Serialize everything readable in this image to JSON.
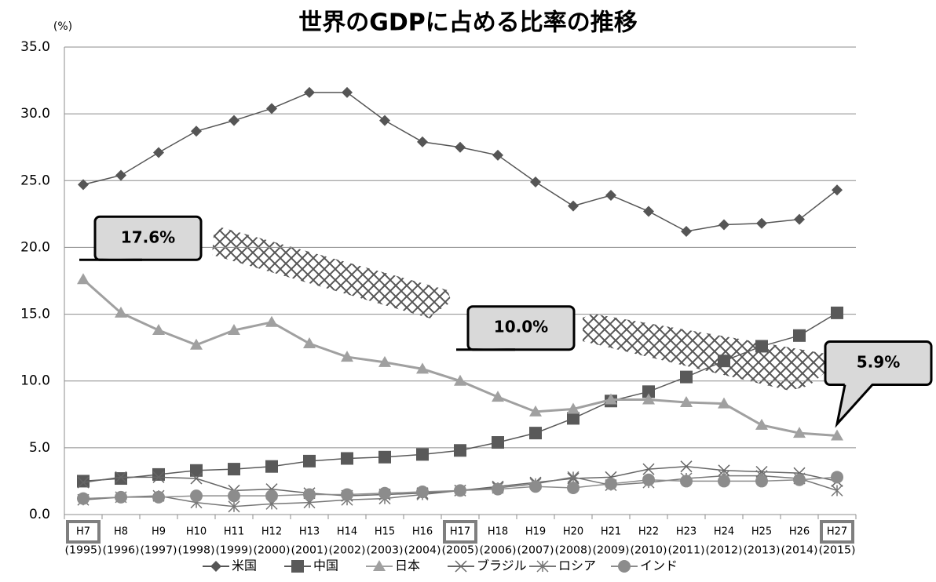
{
  "chart_data": {
    "type": "line",
    "title": "世界のGDPに占める比率の推移",
    "y_label": "(%)",
    "categories": [
      "H7",
      "H8",
      "H9",
      "H10",
      "H11",
      "H12",
      "H13",
      "H14",
      "H15",
      "H16",
      "H17",
      "H18",
      "H19",
      "H20",
      "H21",
      "H22",
      "H23",
      "H24",
      "H25",
      "H26",
      "H27"
    ],
    "category_years": [
      "(1995)",
      "(1996)",
      "(1997)",
      "(1998)",
      "(1999)",
      "(2000)",
      "(2001)",
      "(2002)",
      "(2003)",
      "(2004)",
      "(2005)",
      "(2006)",
      "(2007)",
      "(2008)",
      "(2009)",
      "(2010)",
      "(2011)",
      "(2012)",
      "(2013)",
      "(2014)",
      "(2015)"
    ],
    "highlighted_categories": [
      "H7",
      "H17",
      "H27"
    ],
    "ylim": [
      0,
      35
    ],
    "yticks": [
      {
        "value": 0,
        "label": "0.0"
      },
      {
        "value": 5,
        "label": "5.0"
      },
      {
        "value": 10,
        "label": "10.0"
      },
      {
        "value": 15,
        "label": "15.0"
      },
      {
        "value": 20,
        "label": "20.0"
      },
      {
        "value": 25,
        "label": "25.0"
      },
      {
        "value": 30,
        "label": "30.0"
      },
      {
        "value": 35,
        "label": "35.0"
      }
    ],
    "grid": true,
    "series": [
      {
        "name": "米国",
        "color": "#555555",
        "marker": "diamond",
        "values": [
          24.7,
          25.4,
          27.1,
          28.7,
          29.5,
          30.4,
          31.6,
          31.6,
          29.5,
          27.9,
          27.5,
          26.9,
          24.9,
          23.1,
          23.9,
          22.7,
          21.2,
          21.7,
          21.8,
          22.1,
          24.3
        ]
      },
      {
        "name": "中国",
        "color": "#595959",
        "marker": "square",
        "values": [
          2.5,
          2.7,
          3.0,
          3.3,
          3.4,
          3.6,
          4.0,
          4.2,
          4.3,
          4.5,
          4.8,
          5.4,
          6.1,
          7.2,
          8.5,
          9.2,
          10.3,
          11.5,
          12.6,
          13.4,
          15.1
        ]
      },
      {
        "name": "日本",
        "color": "#a0a0a0",
        "marker": "triangle",
        "values": [
          17.6,
          15.1,
          13.8,
          12.7,
          13.8,
          14.4,
          12.8,
          11.8,
          11.4,
          10.9,
          10.0,
          8.8,
          7.7,
          7.9,
          8.6,
          8.6,
          8.4,
          8.3,
          6.7,
          6.1,
          5.9
        ]
      },
      {
        "name": "ブラジル",
        "color": "#666666",
        "marker": "x",
        "values": [
          2.4,
          2.8,
          2.8,
          2.7,
          1.8,
          1.9,
          1.6,
          1.4,
          1.5,
          1.6,
          1.8,
          2.1,
          2.4,
          2.7,
          2.8,
          3.4,
          3.6,
          3.3,
          3.2,
          3.1,
          2.5
        ]
      },
      {
        "name": "ロシア",
        "color": "#777777",
        "marker": "asterisk",
        "values": [
          1.1,
          1.3,
          1.4,
          0.9,
          0.6,
          0.8,
          0.9,
          1.1,
          1.2,
          1.5,
          1.8,
          2.0,
          2.3,
          2.8,
          2.2,
          2.4,
          2.7,
          2.9,
          2.9,
          2.7,
          1.8
        ]
      },
      {
        "name": "インド",
        "color": "#8c8c8c",
        "marker": "circle",
        "values": [
          1.2,
          1.3,
          1.3,
          1.4,
          1.4,
          1.4,
          1.5,
          1.5,
          1.6,
          1.7,
          1.8,
          1.9,
          2.1,
          2.0,
          2.3,
          2.6,
          2.5,
          2.5,
          2.5,
          2.6,
          2.8
        ]
      }
    ],
    "annotations": [
      {
        "text": "17.6%",
        "x": "H7"
      },
      {
        "text": "10.0%",
        "x": "H17"
      },
      {
        "text": "5.9%",
        "x": "H27"
      }
    ]
  }
}
